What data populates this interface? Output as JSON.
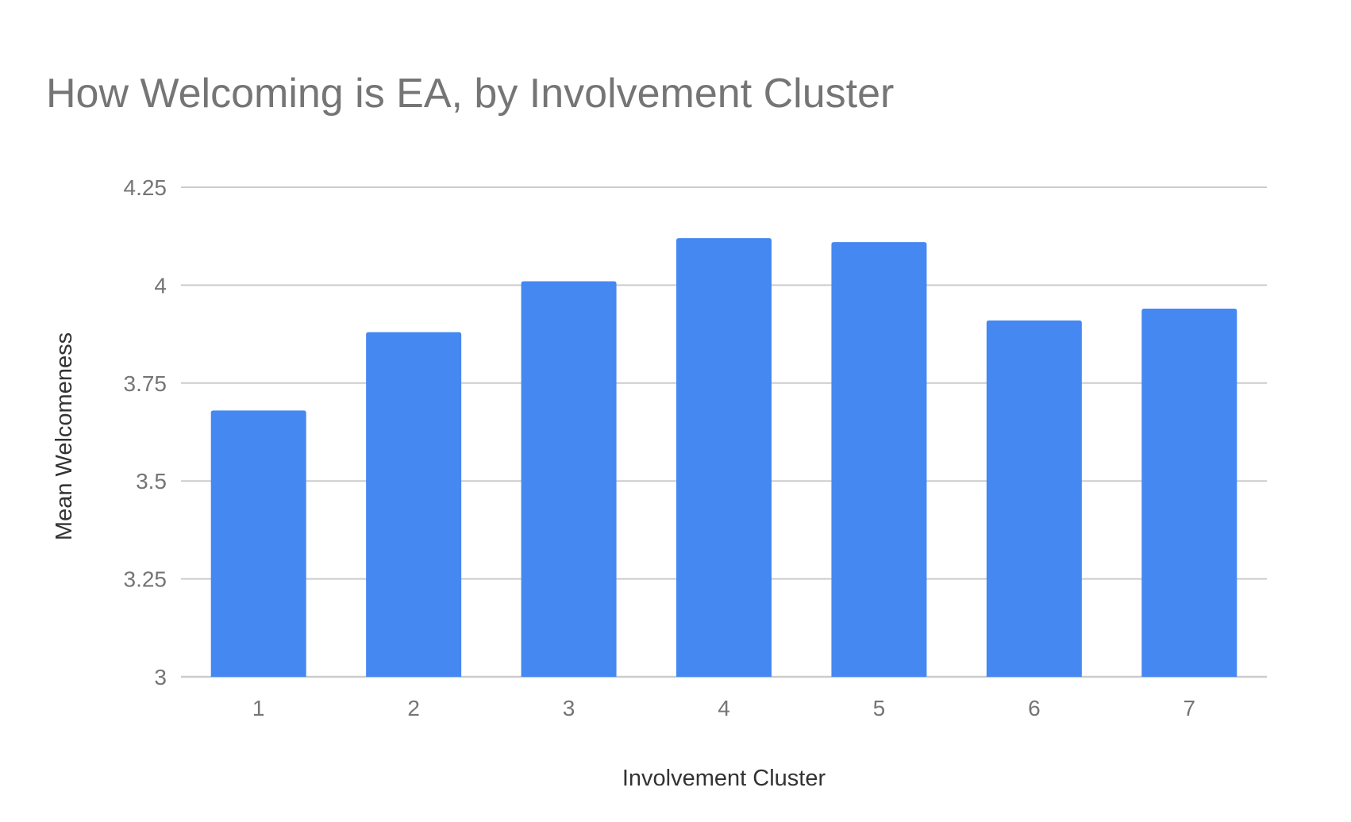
{
  "chart_data": {
    "type": "bar",
    "title": "How Welcoming is EA, by Involvement Cluster",
    "xlabel": "Involvement Cluster",
    "ylabel": "Mean Welcomeness",
    "categories": [
      "1",
      "2",
      "3",
      "4",
      "5",
      "6",
      "7"
    ],
    "values": [
      3.68,
      3.88,
      4.01,
      4.12,
      4.11,
      3.91,
      3.94
    ],
    "ylim": [
      3,
      4.25
    ],
    "yticks": [
      "3",
      "3.25",
      "3.5",
      "3.75",
      "4",
      "4.25"
    ],
    "ytick_values": [
      3,
      3.25,
      3.5,
      3.75,
      4,
      4.25
    ],
    "grid": true,
    "legend": "none",
    "bar_color": "#4688F1",
    "grid_color": "#CCCCCC"
  }
}
